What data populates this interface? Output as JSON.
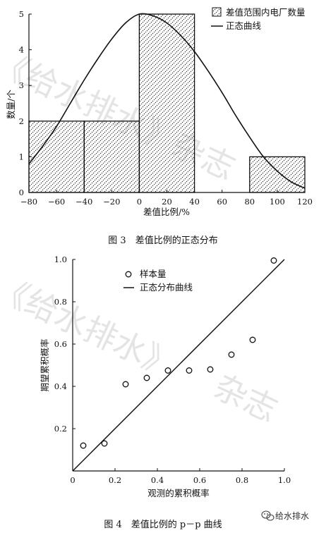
{
  "watermark": {
    "top": "《给水排水》杂志",
    "bottom_left": "《给水排水》",
    "bottom_right": "杂志"
  },
  "brand": {
    "name": "给水排水"
  },
  "chart_data": [
    {
      "type": "bar",
      "caption": "图 3　差值比例的正态分布",
      "xlabel": "差值比例/%",
      "ylabel": "数量/个",
      "xlim": [
        -80,
        120
      ],
      "ylim": [
        0,
        5
      ],
      "xticks": [
        -80,
        -60,
        -40,
        -20,
        0,
        20,
        40,
        60,
        80,
        100,
        120
      ],
      "yticks": [
        0,
        1,
        2,
        3,
        4,
        5
      ],
      "bins": [
        {
          "x0": -80,
          "x1": -40,
          "value": 2
        },
        {
          "x0": -40,
          "x1": 0,
          "value": 2
        },
        {
          "x0": 0,
          "x1": 40,
          "value": 5
        },
        {
          "x0": 80,
          "x1": 120,
          "value": 1
        }
      ],
      "curve": {
        "x": [
          -80,
          -70,
          -60,
          -50,
          -40,
          -30,
          -20,
          -10,
          0,
          10,
          20,
          30,
          40,
          50,
          60,
          70,
          80,
          90,
          100,
          110,
          120
        ],
        "y": [
          0.8,
          1.3,
          1.85,
          2.5,
          3.15,
          3.75,
          4.3,
          4.75,
          5.0,
          4.95,
          4.75,
          4.4,
          3.95,
          3.4,
          2.8,
          2.15,
          1.55,
          1.0,
          0.6,
          0.3,
          0.12
        ]
      },
      "legend": {
        "position": "top-right",
        "bar_label": "差值范围内电厂数量",
        "curve_label": "正态曲线"
      }
    },
    {
      "type": "scatter",
      "caption": "图 4　差值比例的 p－p 曲线",
      "xlabel": "观测的累积概率",
      "ylabel": "期望累积概率",
      "xlim": [
        0,
        1.0
      ],
      "ylim": [
        0,
        1.0
      ],
      "xticks": [
        "0",
        "0.2",
        "0.4",
        "0.6",
        "0.8",
        "1.0"
      ],
      "yticks": [
        "0",
        "0.2",
        "0.4",
        "0.6",
        "0.8",
        "1.0"
      ],
      "x": [
        0.05,
        0.15,
        0.25,
        0.35,
        0.45,
        0.55,
        0.65,
        0.75,
        0.85,
        0.95
      ],
      "y": [
        0.12,
        0.13,
        0.41,
        0.44,
        0.475,
        0.475,
        0.48,
        0.55,
        0.62,
        0.995
      ],
      "line": {
        "x": [
          0,
          1.0
        ],
        "y": [
          0,
          1.0
        ]
      },
      "legend": {
        "position": "top-left",
        "point_label": "样本量",
        "line_label": "正态分布曲线"
      }
    }
  ]
}
